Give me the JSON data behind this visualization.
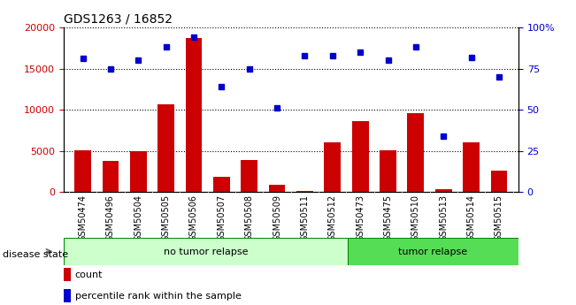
{
  "title": "GDS1263 / 16852",
  "samples": [
    "GSM50474",
    "GSM50496",
    "GSM50504",
    "GSM50505",
    "GSM50506",
    "GSM50507",
    "GSM50508",
    "GSM50509",
    "GSM50511",
    "GSM50512",
    "GSM50473",
    "GSM50475",
    "GSM50510",
    "GSM50513",
    "GSM50514",
    "GSM50515"
  ],
  "counts": [
    5100,
    3800,
    5000,
    10700,
    18700,
    1900,
    3900,
    900,
    100,
    6100,
    8600,
    5100,
    9600,
    350,
    6000,
    2600
  ],
  "percentiles": [
    81,
    75,
    80,
    88,
    94,
    64,
    75,
    51,
    83,
    83,
    85,
    80,
    88,
    34,
    82,
    70
  ],
  "no_tumor_count": 10,
  "tumor_count": 6,
  "bar_color": "#cc0000",
  "dot_color": "#0000cc",
  "ylim_left": [
    0,
    20000
  ],
  "ylim_right": [
    0,
    100
  ],
  "yticks_left": [
    0,
    5000,
    10000,
    15000,
    20000
  ],
  "yticks_right": [
    0,
    25,
    50,
    75,
    100
  ],
  "no_tumor_color": "#ccffcc",
  "tumor_color": "#55dd55",
  "label_bg_color": "#cccccc",
  "disease_state_label": "disease state",
  "no_tumor_label": "no tumor relapse",
  "tumor_label": "tumor relapse",
  "legend_count_label": "count",
  "legend_pct_label": "percentile rank within the sample",
  "figsize": [
    6.51,
    3.45
  ],
  "dpi": 100
}
